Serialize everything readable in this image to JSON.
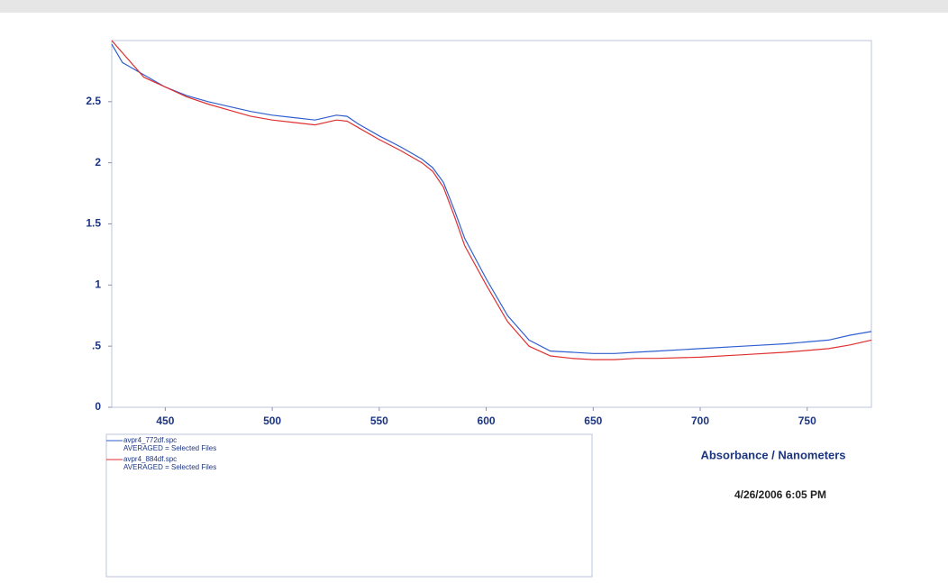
{
  "chart_data": {
    "type": "line",
    "x_label": "Absorbance / Nanometers",
    "timestamp": "4/26/2006 6:05 PM",
    "x": [
      425,
      430,
      440,
      450,
      460,
      470,
      480,
      490,
      500,
      510,
      520,
      530,
      535,
      540,
      550,
      560,
      570,
      575,
      580,
      585,
      590,
      600,
      610,
      620,
      630,
      640,
      650,
      660,
      670,
      680,
      700,
      720,
      740,
      760,
      770,
      780
    ],
    "series": [
      {
        "name": "avpr4_772df.spc",
        "note": "AVERAGED = Selected Files",
        "color": "#2f5fd0",
        "values": [
          2.97,
          2.82,
          2.72,
          2.62,
          2.55,
          2.5,
          2.46,
          2.42,
          2.39,
          2.37,
          2.35,
          2.39,
          2.38,
          2.32,
          2.22,
          2.13,
          2.03,
          1.96,
          1.84,
          1.62,
          1.38,
          1.05,
          0.75,
          0.55,
          0.46,
          0.45,
          0.44,
          0.44,
          0.45,
          0.46,
          0.48,
          0.5,
          0.52,
          0.55,
          0.59,
          0.62
        ]
      },
      {
        "name": "avpr4_884df.spc",
        "note": "AVERAGED = Selected Files",
        "color": "#e03030",
        "values": [
          3.0,
          2.9,
          2.7,
          2.62,
          2.54,
          2.48,
          2.43,
          2.38,
          2.35,
          2.33,
          2.31,
          2.35,
          2.34,
          2.29,
          2.19,
          2.1,
          2.0,
          1.93,
          1.8,
          1.57,
          1.32,
          1.0,
          0.7,
          0.5,
          0.42,
          0.4,
          0.39,
          0.39,
          0.4,
          0.4,
          0.41,
          0.43,
          0.45,
          0.48,
          0.51,
          0.55
        ]
      }
    ],
    "xlim": [
      425,
      780
    ],
    "xticks": [
      450,
      500,
      550,
      600,
      650,
      700,
      750
    ],
    "ylim": [
      0,
      3
    ],
    "yticks": [
      0,
      {
        "value": 0.5,
        "label": ".5"
      },
      1,
      1.5,
      2,
      2.5
    ]
  }
}
